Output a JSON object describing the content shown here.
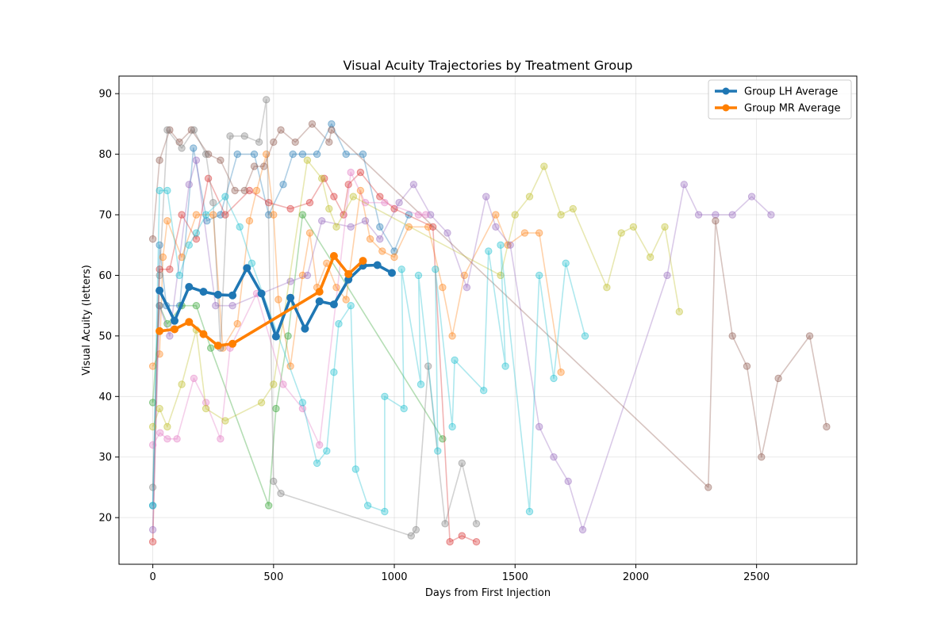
{
  "chart_data": {
    "type": "line",
    "title": "Visual Acuity Trajectories by Treatment Group",
    "xlabel": "Days from First Injection",
    "ylabel": "Visual Acuity (letters)",
    "xlim": [
      -140,
      2915
    ],
    "ylim": [
      12.3,
      92.9
    ],
    "xticks": [
      0,
      500,
      1000,
      1500,
      2000,
      2500
    ],
    "yticks": [
      20,
      30,
      40,
      50,
      60,
      70,
      80,
      90
    ],
    "grid": true,
    "legend_position": "top-right",
    "legend": [
      "Group LH Average",
      "Group MR Average"
    ],
    "average_series": [
      {
        "name": "Group LH Average",
        "color": "#1f77b4",
        "points": [
          [
            28,
            57.5
          ],
          [
            90,
            52.5
          ],
          [
            150,
            58.1
          ],
          [
            210,
            57.3
          ],
          [
            270,
            56.8
          ],
          [
            330,
            56.7
          ],
          [
            390,
            61.2
          ],
          [
            450,
            57
          ],
          [
            510,
            49.9
          ],
          [
            570,
            56.3
          ],
          [
            630,
            51.2
          ],
          [
            690,
            55.7
          ],
          [
            750,
            55.2
          ],
          [
            810,
            59.3
          ],
          [
            870,
            61.6
          ],
          [
            930,
            61.7
          ],
          [
            990,
            60.4
          ]
        ]
      },
      {
        "name": "Group MR Average",
        "color": "#ff7f00",
        "points": [
          [
            28,
            50.8
          ],
          [
            90,
            51.1
          ],
          [
            150,
            52.3
          ],
          [
            210,
            50.3
          ],
          [
            270,
            48.4
          ],
          [
            330,
            48.7
          ],
          [
            690,
            57.3
          ],
          [
            750,
            63.2
          ],
          [
            810,
            60.2
          ],
          [
            870,
            62.4
          ]
        ]
      }
    ],
    "patient_series": [
      {
        "color": "#1f77b4",
        "points": [
          [
            0,
            22
          ],
          [
            28,
            65
          ],
          [
            56,
            55
          ],
          [
            112,
            55
          ],
          [
            168,
            81
          ],
          [
            224,
            69
          ],
          [
            280,
            70
          ],
          [
            350,
            80
          ],
          [
            420,
            80
          ],
          [
            480,
            70
          ],
          [
            540,
            75
          ],
          [
            580,
            80
          ],
          [
            620,
            80
          ],
          [
            680,
            80
          ],
          [
            740,
            85
          ],
          [
            800,
            80
          ],
          [
            870,
            80
          ],
          [
            940,
            68
          ],
          [
            1000,
            64
          ],
          [
            1060,
            70
          ]
        ]
      },
      {
        "color": "#ff7f0e",
        "points": [
          [
            0,
            45
          ],
          [
            28,
            47
          ],
          [
            42,
            63
          ],
          [
            60,
            69
          ],
          [
            120,
            63
          ],
          [
            180,
            70
          ],
          [
            250,
            70
          ],
          [
            290,
            48
          ],
          [
            350,
            52
          ],
          [
            400,
            69
          ],
          [
            430,
            74
          ],
          [
            470,
            80
          ],
          [
            500,
            70
          ],
          [
            520,
            56
          ],
          [
            570,
            45
          ],
          [
            620,
            60
          ],
          [
            650,
            67
          ],
          [
            680,
            58
          ],
          [
            720,
            62
          ],
          [
            760,
            58
          ],
          [
            800,
            56
          ],
          [
            860,
            74
          ],
          [
            900,
            66
          ],
          [
            950,
            64
          ],
          [
            1000,
            63
          ],
          [
            1060,
            68
          ],
          [
            1140,
            68
          ],
          [
            1200,
            58
          ],
          [
            1240,
            50
          ],
          [
            1290,
            60
          ],
          [
            1420,
            70
          ],
          [
            1470,
            65
          ],
          [
            1540,
            67
          ],
          [
            1600,
            67
          ],
          [
            1690,
            44
          ]
        ]
      },
      {
        "color": "#2ca02c",
        "points": [
          [
            0,
            39
          ],
          [
            28,
            55
          ],
          [
            60,
            52
          ],
          [
            120,
            55
          ],
          [
            180,
            55
          ],
          [
            240,
            48
          ],
          [
            480,
            22
          ],
          [
            510,
            38
          ],
          [
            560,
            50
          ],
          [
            620,
            70
          ],
          [
            1200,
            33
          ]
        ]
      },
      {
        "color": "#d62728",
        "points": [
          [
            0,
            16
          ],
          [
            28,
            61
          ],
          [
            70,
            61
          ],
          [
            120,
            70
          ],
          [
            180,
            66
          ],
          [
            230,
            76
          ],
          [
            300,
            70
          ],
          [
            400,
            74
          ],
          [
            480,
            72
          ],
          [
            570,
            71
          ],
          [
            650,
            72
          ],
          [
            710,
            76
          ],
          [
            750,
            73
          ],
          [
            790,
            70
          ],
          [
            810,
            75
          ],
          [
            860,
            77
          ],
          [
            940,
            73
          ],
          [
            1000,
            71
          ],
          [
            1160,
            68
          ],
          [
            1230,
            16
          ],
          [
            1280,
            17
          ],
          [
            1340,
            16
          ]
        ]
      },
      {
        "color": "#9467bd",
        "points": [
          [
            0,
            18
          ],
          [
            28,
            55
          ],
          [
            70,
            50
          ],
          [
            150,
            75
          ],
          [
            180,
            79
          ],
          [
            260,
            55
          ],
          [
            330,
            55
          ],
          [
            570,
            59
          ],
          [
            640,
            60
          ],
          [
            700,
            69
          ],
          [
            820,
            68
          ],
          [
            880,
            69
          ],
          [
            940,
            66
          ],
          [
            1020,
            72
          ],
          [
            1080,
            75
          ],
          [
            1150,
            70
          ],
          [
            1220,
            67
          ],
          [
            1300,
            58
          ],
          [
            1380,
            73
          ],
          [
            1420,
            68
          ],
          [
            1480,
            65
          ],
          [
            1600,
            35
          ],
          [
            1660,
            30
          ],
          [
            1720,
            26
          ],
          [
            1780,
            18
          ],
          [
            2130,
            60
          ],
          [
            2200,
            75
          ],
          [
            2260,
            70
          ],
          [
            2330,
            70
          ],
          [
            2400,
            70
          ],
          [
            2480,
            73
          ],
          [
            2560,
            70
          ]
        ]
      },
      {
        "color": "#8c564b",
        "points": [
          [
            0,
            66
          ],
          [
            28,
            79
          ],
          [
            70,
            84
          ],
          [
            110,
            82
          ],
          [
            160,
            84
          ],
          [
            230,
            80
          ],
          [
            280,
            79
          ],
          [
            340,
            74
          ],
          [
            380,
            74
          ],
          [
            420,
            78
          ],
          [
            460,
            78
          ],
          [
            500,
            82
          ],
          [
            530,
            84
          ],
          [
            590,
            82
          ],
          [
            660,
            85
          ],
          [
            730,
            82
          ],
          [
            740,
            84
          ],
          [
            2300,
            25
          ],
          [
            2330,
            69
          ],
          [
            2400,
            50
          ],
          [
            2460,
            45
          ],
          [
            2520,
            30
          ],
          [
            2590,
            43
          ],
          [
            2720,
            50
          ],
          [
            2790,
            35
          ]
        ]
      },
      {
        "color": "#e377c2",
        "points": [
          [
            0,
            32
          ],
          [
            30,
            34
          ],
          [
            60,
            33
          ],
          [
            100,
            33
          ],
          [
            170,
            43
          ],
          [
            220,
            39
          ],
          [
            280,
            33
          ],
          [
            320,
            48
          ],
          [
            430,
            57
          ],
          [
            540,
            42
          ],
          [
            620,
            38
          ],
          [
            690,
            32
          ],
          [
            820,
            77
          ],
          [
            880,
            72
          ],
          [
            960,
            72
          ],
          [
            1100,
            70
          ],
          [
            1130,
            70
          ]
        ]
      },
      {
        "color": "#7f7f7f",
        "points": [
          [
            0,
            25
          ],
          [
            28,
            60
          ],
          [
            60,
            84
          ],
          [
            120,
            81
          ],
          [
            170,
            84
          ],
          [
            220,
            80
          ],
          [
            250,
            72
          ],
          [
            280,
            48
          ],
          [
            320,
            83
          ],
          [
            380,
            83
          ],
          [
            440,
            82
          ],
          [
            470,
            89
          ],
          [
            500,
            26
          ],
          [
            530,
            24
          ],
          [
            1070,
            17
          ],
          [
            1090,
            18
          ],
          [
            1140,
            45
          ],
          [
            1210,
            19
          ],
          [
            1280,
            29
          ],
          [
            1340,
            19
          ]
        ]
      },
      {
        "color": "#bcbd22",
        "points": [
          [
            0,
            35
          ],
          [
            28,
            38
          ],
          [
            60,
            35
          ],
          [
            120,
            42
          ],
          [
            180,
            51
          ],
          [
            220,
            38
          ],
          [
            300,
            36
          ],
          [
            450,
            39
          ],
          [
            500,
            42
          ],
          [
            640,
            79
          ],
          [
            700,
            76
          ],
          [
            730,
            71
          ],
          [
            760,
            68
          ],
          [
            830,
            73
          ],
          [
            1440,
            60
          ],
          [
            1500,
            70
          ],
          [
            1560,
            73
          ],
          [
            1620,
            78
          ],
          [
            1690,
            70
          ],
          [
            1740,
            71
          ],
          [
            1880,
            58
          ],
          [
            1940,
            67
          ],
          [
            1990,
            68
          ],
          [
            2060,
            63
          ],
          [
            2120,
            68
          ],
          [
            2180,
            54
          ]
        ]
      },
      {
        "color": "#17becf",
        "points": [
          [
            0,
            22
          ],
          [
            28,
            74
          ],
          [
            60,
            74
          ],
          [
            110,
            60
          ],
          [
            150,
            65
          ],
          [
            180,
            67
          ],
          [
            220,
            70
          ],
          [
            300,
            73
          ],
          [
            360,
            68
          ],
          [
            410,
            62
          ],
          [
            620,
            39
          ],
          [
            680,
            29
          ],
          [
            720,
            31
          ],
          [
            750,
            44
          ],
          [
            770,
            52
          ],
          [
            820,
            55
          ],
          [
            840,
            28
          ],
          [
            890,
            22
          ],
          [
            960,
            21
          ],
          [
            960,
            40
          ],
          [
            1040,
            38
          ],
          [
            1030,
            61
          ],
          [
            1110,
            42
          ],
          [
            1100,
            60
          ],
          [
            1180,
            31
          ],
          [
            1170,
            61
          ],
          [
            1240,
            35
          ],
          [
            1250,
            46
          ],
          [
            1370,
            41
          ],
          [
            1390,
            64
          ],
          [
            1460,
            45
          ],
          [
            1440,
            65
          ],
          [
            1560,
            21
          ],
          [
            1600,
            60
          ],
          [
            1660,
            43
          ],
          [
            1710,
            62
          ],
          [
            1790,
            50
          ]
        ]
      }
    ]
  }
}
